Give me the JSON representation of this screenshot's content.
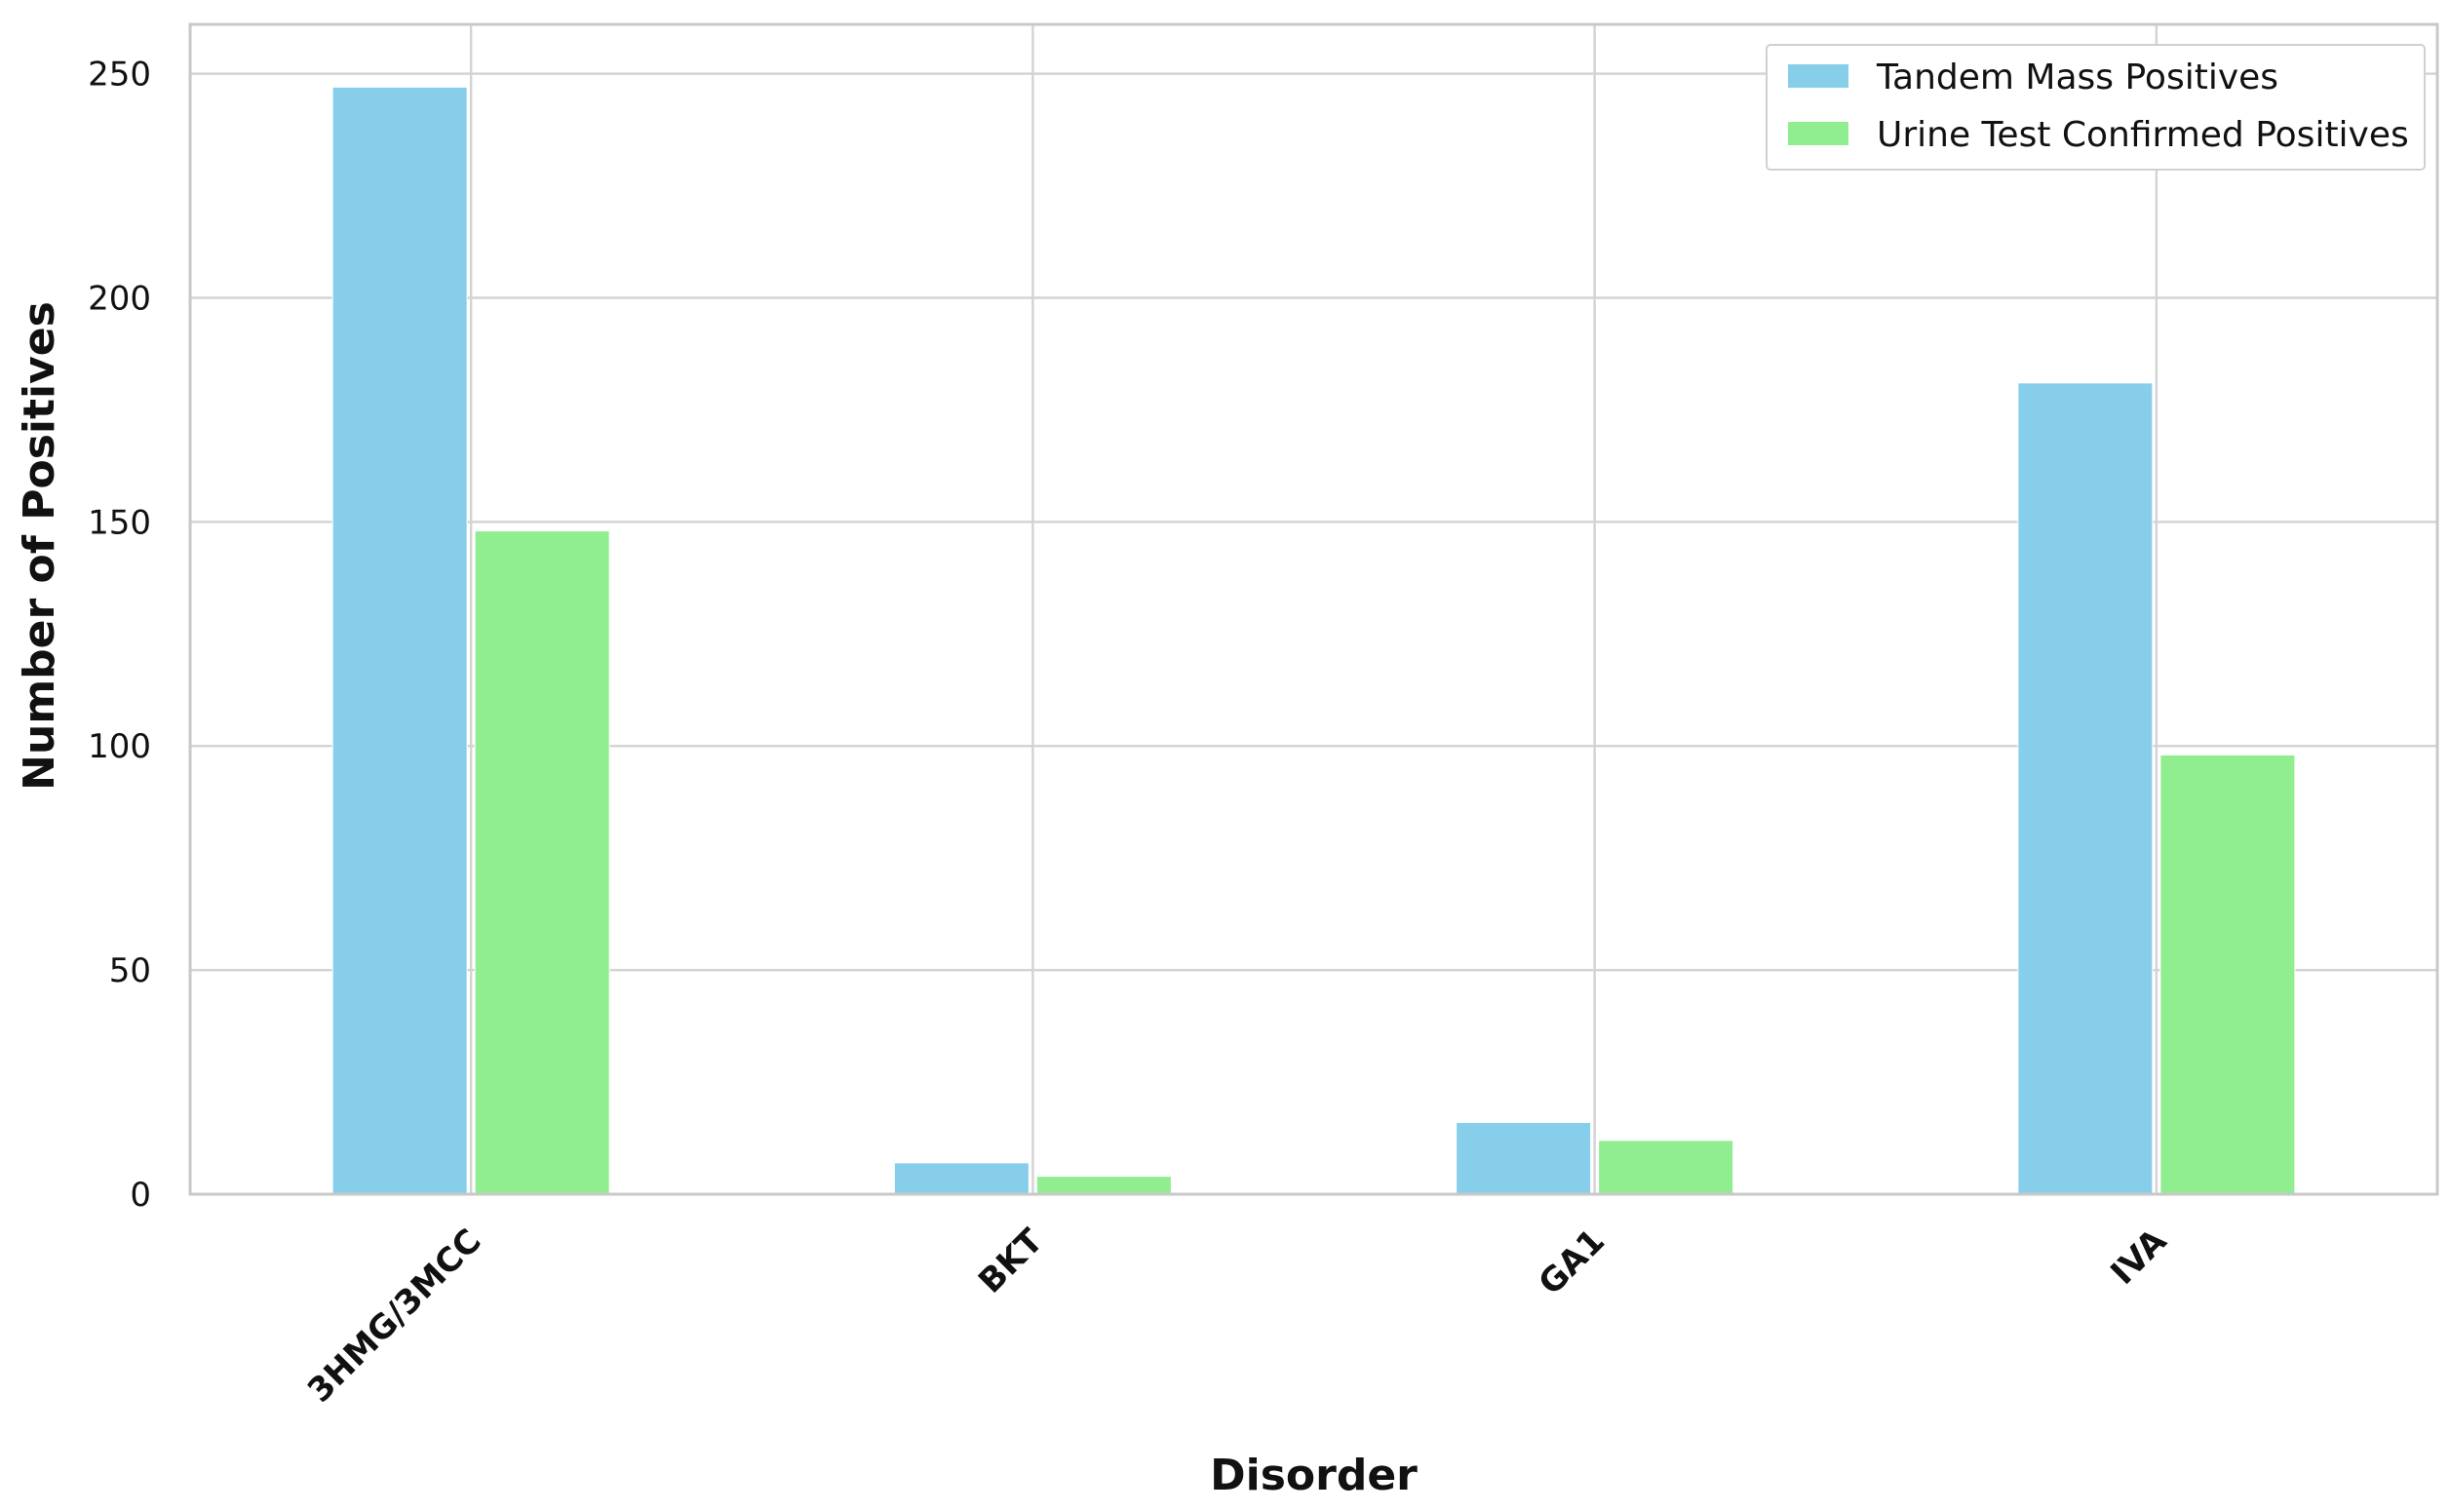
{
  "chart_data": {
    "type": "bar",
    "title": "",
    "xlabel": "Disorder",
    "ylabel": "Number of Positives",
    "categories": [
      "3HMG/3MCC",
      "BKT",
      "GA1",
      "IVA"
    ],
    "series": [
      {
        "name": "Tandem Mass Positives",
        "values": [
          247,
          7,
          16,
          181
        ],
        "color": "#87ceeb"
      },
      {
        "name": "Urine Test Confirmed Positives",
        "values": [
          148,
          4,
          12,
          98
        ],
        "color": "#90ee90"
      }
    ],
    "ylim": [
      0,
      261
    ],
    "yticks": [
      0,
      50,
      100,
      150,
      200,
      250
    ],
    "grid": true,
    "legend_position": "top-right",
    "category_label_rotation": "45deg"
  }
}
